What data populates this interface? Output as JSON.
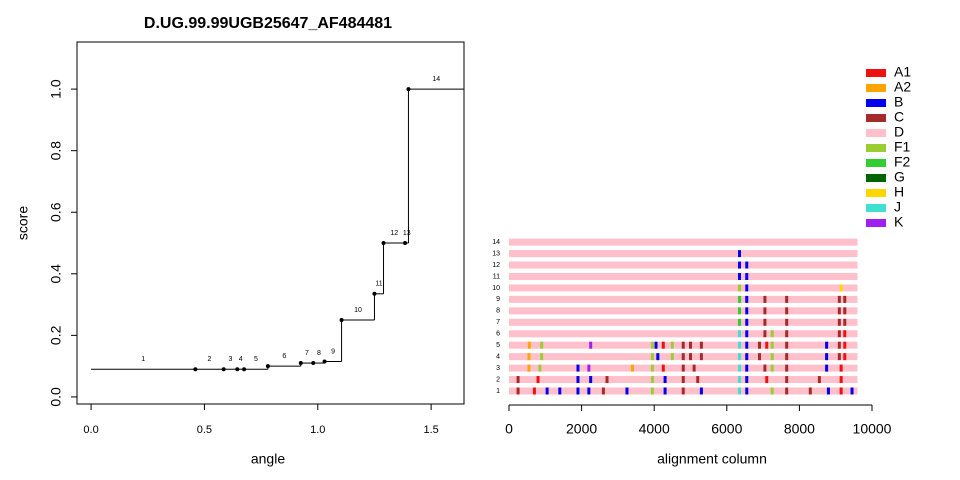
{
  "chart_data": [
    {
      "type": "step",
      "title": "D.UG.99.99UGB25647_AF484481",
      "x_label": "angle",
      "y_label": "score",
      "xlim": [
        -0.062,
        1.645
      ],
      "ylim": [
        -0.023,
        1.153
      ],
      "xticks": [
        {
          "value": 0,
          "label": "0.0"
        },
        0.5,
        {
          "value": 1,
          "label": "1.0"
        },
        1.5
      ],
      "yticks": [
        {
          "value": 0,
          "label": "0.0"
        },
        0.2,
        0.4,
        0.6,
        0.8,
        {
          "value": 1,
          "label": "1.0"
        }
      ],
      "x": [
        0,
        0.46,
        0.585,
        0.645,
        0.675,
        0.78,
        0.925,
        0.98,
        1.03,
        1.105,
        1.25,
        1.29,
        1.385,
        1.4
      ],
      "values": [
        0.09,
        0.09,
        0.09,
        0.09,
        0.09,
        0.1,
        0.11,
        0.11,
        0.115,
        0.25,
        0.335,
        0.5,
        0.5,
        1.0
      ],
      "labels": [
        "1",
        "2",
        "3",
        "4",
        "5",
        "6",
        "7",
        "8",
        "9",
        "10",
        "11",
        "12",
        "13",
        "14"
      ],
      "color": "#000000"
    },
    {
      "type": "alignment",
      "x_label": "alignment column",
      "xlim": [
        0,
        10000
      ],
      "xticks": [
        0,
        2000,
        4000,
        6000,
        8000,
        10000
      ],
      "background_subtype": "D",
      "row_end": 9600,
      "legend": [
        {
          "name": "A1",
          "color": "#ee1111"
        },
        {
          "name": "A2",
          "color": "#ffa500"
        },
        {
          "name": "B",
          "color": "#0000ee"
        },
        {
          "name": "C",
          "color": "#a52a2a"
        },
        {
          "name": "D",
          "color": "#ffc0cb"
        },
        {
          "name": "F1",
          "color": "#9acd32"
        },
        {
          "name": "F2",
          "color": "#32cd32"
        },
        {
          "name": "G",
          "color": "#006400"
        },
        {
          "name": "H",
          "color": "#ffd700"
        },
        {
          "name": "J",
          "color": "#40e0d0"
        },
        {
          "name": "K",
          "color": "#a020f0"
        }
      ],
      "rows": [
        {
          "label": "1",
          "stripes": [
            {
              "x": 250,
              "s": "C"
            },
            {
              "x": 700,
              "s": "A1"
            },
            {
              "x": 1050,
              "s": "B"
            },
            {
              "x": 1400,
              "s": "B"
            },
            {
              "x": 1900,
              "s": "B"
            },
            {
              "x": 2200,
              "s": "B"
            },
            {
              "x": 2600,
              "s": "C"
            },
            {
              "x": 3250,
              "s": "B"
            },
            {
              "x": 3950,
              "s": "F1"
            },
            {
              "x": 4300,
              "s": "B"
            },
            {
              "x": 4800,
              "s": "C"
            },
            {
              "x": 5300,
              "s": "B"
            },
            {
              "x": 6350,
              "s": "J"
            },
            {
              "x": 6550,
              "s": "B"
            },
            {
              "x": 7250,
              "s": "F1"
            },
            {
              "x": 7650,
              "s": "C"
            },
            {
              "x": 8300,
              "s": "C"
            },
            {
              "x": 8800,
              "s": "B"
            },
            {
              "x": 9150,
              "s": "A1"
            },
            {
              "x": 9450,
              "s": "B"
            }
          ]
        },
        {
          "label": "2",
          "stripes": [
            {
              "x": 250,
              "s": "C"
            },
            {
              "x": 800,
              "s": "A1"
            },
            {
              "x": 1900,
              "s": "B"
            },
            {
              "x": 2250,
              "s": "B"
            },
            {
              "x": 2700,
              "s": "C"
            },
            {
              "x": 3950,
              "s": "F1"
            },
            {
              "x": 4300,
              "s": "B"
            },
            {
              "x": 4800,
              "s": "C"
            },
            {
              "x": 5200,
              "s": "C"
            },
            {
              "x": 6350,
              "s": "J"
            },
            {
              "x": 6550,
              "s": "B"
            },
            {
              "x": 7100,
              "s": "A1"
            },
            {
              "x": 7650,
              "s": "C"
            },
            {
              "x": 8550,
              "s": "C"
            },
            {
              "x": 9150,
              "s": "A1"
            }
          ]
        },
        {
          "label": "3",
          "stripes": [
            {
              "x": 550,
              "s": "A2"
            },
            {
              "x": 850,
              "s": "F1"
            },
            {
              "x": 1900,
              "s": "B"
            },
            {
              "x": 2200,
              "s": "K"
            },
            {
              "x": 3400,
              "s": "A2"
            },
            {
              "x": 3950,
              "s": "F1"
            },
            {
              "x": 4250,
              "s": "A1"
            },
            {
              "x": 4800,
              "s": "C"
            },
            {
              "x": 5100,
              "s": "C"
            },
            {
              "x": 6350,
              "s": "J"
            },
            {
              "x": 6550,
              "s": "B"
            },
            {
              "x": 7050,
              "s": "C"
            },
            {
              "x": 7250,
              "s": "F1"
            },
            {
              "x": 7650,
              "s": "C"
            },
            {
              "x": 8750,
              "s": "B"
            },
            {
              "x": 9150,
              "s": "A1"
            }
          ]
        },
        {
          "label": "4",
          "stripes": [
            {
              "x": 550,
              "s": "A2"
            },
            {
              "x": 900,
              "s": "F1"
            },
            {
              "x": 3950,
              "s": "F1"
            },
            {
              "x": 4100,
              "s": "B"
            },
            {
              "x": 4500,
              "s": "F1"
            },
            {
              "x": 4800,
              "s": "C"
            },
            {
              "x": 5000,
              "s": "C"
            },
            {
              "x": 5300,
              "s": "C"
            },
            {
              "x": 6350,
              "s": "J"
            },
            {
              "x": 6550,
              "s": "B"
            },
            {
              "x": 6900,
              "s": "C"
            },
            {
              "x": 7250,
              "s": "F1"
            },
            {
              "x": 7650,
              "s": "C"
            },
            {
              "x": 8750,
              "s": "B"
            },
            {
              "x": 9100,
              "s": "C"
            },
            {
              "x": 9250,
              "s": "A1"
            }
          ]
        },
        {
          "label": "5",
          "stripes": [
            {
              "x": 560,
              "s": "A2"
            },
            {
              "x": 900,
              "s": "F1"
            },
            {
              "x": 2250,
              "s": "K"
            },
            {
              "x": 3950,
              "s": "F1"
            },
            {
              "x": 4050,
              "s": "B"
            },
            {
              "x": 4250,
              "s": "A1"
            },
            {
              "x": 4500,
              "s": "F1"
            },
            {
              "x": 4800,
              "s": "C"
            },
            {
              "x": 5000,
              "s": "C"
            },
            {
              "x": 5300,
              "s": "C"
            },
            {
              "x": 6350,
              "s": "J"
            },
            {
              "x": 6550,
              "s": "B"
            },
            {
              "x": 6900,
              "s": "C"
            },
            {
              "x": 7100,
              "s": "A1"
            },
            {
              "x": 7250,
              "s": "F1"
            },
            {
              "x": 7650,
              "s": "C"
            },
            {
              "x": 8750,
              "s": "B"
            },
            {
              "x": 9100,
              "s": "C"
            },
            {
              "x": 9250,
              "s": "A1"
            }
          ]
        },
        {
          "label": "6",
          "stripes": [
            {
              "x": 6350,
              "s": "J"
            },
            {
              "x": 6550,
              "s": "B"
            },
            {
              "x": 7050,
              "s": "C"
            },
            {
              "x": 7250,
              "s": "F1"
            },
            {
              "x": 7650,
              "s": "C"
            },
            {
              "x": 9100,
              "s": "C"
            },
            {
              "x": 9250,
              "s": "A1"
            }
          ]
        },
        {
          "label": "7",
          "stripes": [
            {
              "x": 6350,
              "s": "F2"
            },
            {
              "x": 6550,
              "s": "B"
            },
            {
              "x": 7050,
              "s": "C"
            },
            {
              "x": 7650,
              "s": "C"
            },
            {
              "x": 9100,
              "s": "C"
            },
            {
              "x": 9250,
              "s": "C"
            }
          ]
        },
        {
          "label": "8",
          "stripes": [
            {
              "x": 6350,
              "s": "F2"
            },
            {
              "x": 6550,
              "s": "B"
            },
            {
              "x": 7050,
              "s": "C"
            },
            {
              "x": 7650,
              "s": "C"
            },
            {
              "x": 9100,
              "s": "C"
            },
            {
              "x": 9250,
              "s": "C"
            }
          ]
        },
        {
          "label": "9",
          "stripes": [
            {
              "x": 6350,
              "s": "F2"
            },
            {
              "x": 6550,
              "s": "B"
            },
            {
              "x": 7050,
              "s": "C"
            },
            {
              "x": 7650,
              "s": "C"
            },
            {
              "x": 9100,
              "s": "C"
            },
            {
              "x": 9250,
              "s": "C"
            }
          ]
        },
        {
          "label": "10",
          "stripes": [
            {
              "x": 6350,
              "s": "F1"
            },
            {
              "x": 6550,
              "s": "B"
            },
            {
              "x": 9150,
              "s": "H"
            }
          ]
        },
        {
          "label": "11",
          "stripes": [
            {
              "x": 6350,
              "s": "B"
            },
            {
              "x": 6550,
              "s": "B"
            }
          ]
        },
        {
          "label": "12",
          "stripes": [
            {
              "x": 6350,
              "s": "B"
            },
            {
              "x": 6550,
              "s": "B"
            }
          ]
        },
        {
          "label": "13",
          "stripes": [
            {
              "x": 6350,
              "s": "B"
            }
          ]
        },
        {
          "label": "14",
          "stripes": []
        }
      ]
    }
  ]
}
